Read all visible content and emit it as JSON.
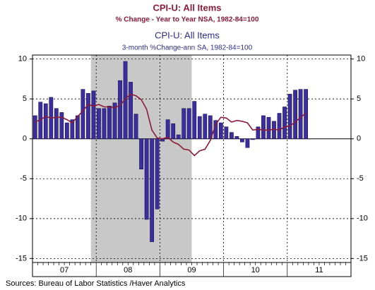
{
  "chart_data": {
    "type": "bar_line",
    "title": "CPI-U: All Items",
    "subtitle": "% Change - Year to Year     NSA, 1982-84=100",
    "title2": "CPI-U: All Items",
    "subtitle2": "3-month %Change-ann     SA, 1982-84=100",
    "source": "Sources:  Bureau of Labor Statistics /Haver Analytics",
    "year_labels": [
      "07",
      "08",
      "09",
      "10",
      "11"
    ],
    "series": [
      {
        "name": "3-month %Change-ann",
        "kind": "bar",
        "color": "#3b2fa0",
        "values": [
          2.9,
          4.6,
          4.4,
          5.2,
          3.8,
          3.3,
          2.0,
          2.4,
          2.9,
          6.2,
          5.7,
          6.0,
          3.8,
          3.8,
          4.1,
          4.5,
          7.3,
          9.7,
          7.1,
          3.1,
          -3.8,
          -10.1,
          -12.9,
          -8.8,
          -0.3,
          2.4,
          1.9,
          0.5,
          3.8,
          3.8,
          4.7,
          2.8,
          3.1,
          2.9,
          2.3,
          2.0,
          1.5,
          0.8,
          0.3,
          -0.4,
          -1.1,
          -0.1,
          1.5,
          2.9,
          2.7,
          2.2,
          3.2,
          4.0,
          5.6,
          6.1,
          6.2,
          6.2
        ]
      },
      {
        "name": "% Change - Year to Year",
        "kind": "line",
        "color": "#8b1a3a",
        "values": [
          2.1,
          2.4,
          2.8,
          2.6,
          2.7,
          2.7,
          2.4,
          2.0,
          2.8,
          3.5,
          4.3,
          4.1,
          4.3,
          4.0,
          4.0,
          3.9,
          4.2,
          5.0,
          5.6,
          5.4,
          4.9,
          3.7,
          1.1,
          0.1,
          0.0,
          0.2,
          -0.4,
          -0.7,
          -1.3,
          -1.4,
          -2.1,
          -1.5,
          -1.3,
          -0.2,
          1.8,
          2.7,
          2.6,
          2.1,
          2.3,
          2.2,
          2.0,
          1.1,
          1.2,
          1.1,
          1.1,
          1.2,
          1.1,
          1.5,
          1.6,
          2.1,
          2.7,
          3.2
        ]
      }
    ],
    "ylim": [
      -15.5,
      10.5
    ],
    "yticks": [
      -15,
      -10,
      -5,
      0,
      5,
      10
    ],
    "y2lim": [
      -15.5,
      10.5
    ],
    "y2ticks": [
      -15,
      -10,
      -5,
      0,
      5,
      10
    ],
    "grid": true
  }
}
